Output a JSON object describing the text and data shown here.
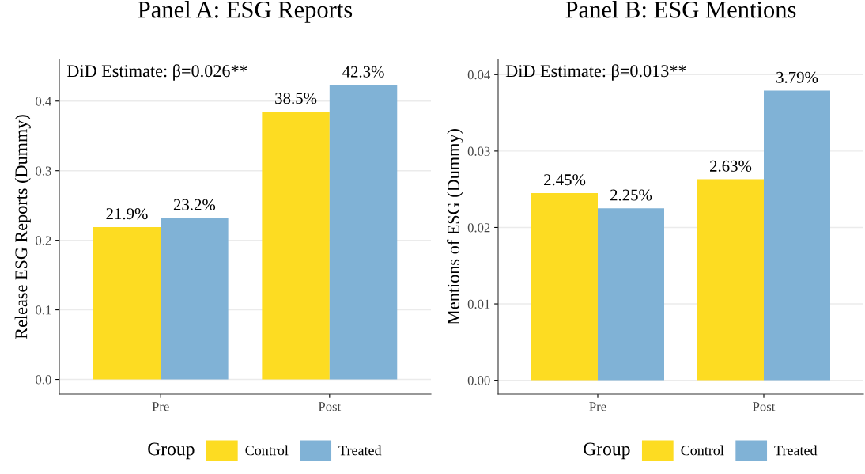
{
  "chart_data": [
    {
      "type": "bar",
      "title": "Panel A: ESG Reports",
      "ylabel": "Release ESG Reports (Dummy)",
      "legend_title": "Group",
      "annotations": [
        "DiD Estimate: β=0.026**"
      ],
      "categories": [
        "Pre",
        "Post"
      ],
      "series": [
        {
          "name": "Control",
          "color": "#fddc22",
          "values": [
            0.219,
            0.385
          ],
          "value_labels": [
            "21.9%",
            "38.5%"
          ]
        },
        {
          "name": "Treated",
          "color": "#80b2d6",
          "values": [
            0.232,
            0.423
          ],
          "value_labels": [
            "23.2%",
            "42.3%"
          ]
        }
      ],
      "ylim": [
        -0.021,
        0.46
      ],
      "yticks": [
        {
          "value": 0,
          "label": "0.0"
        },
        0.1,
        0.2,
        0.3,
        0.4
      ],
      "grid": "y",
      "legend": "bottom"
    },
    {
      "type": "bar",
      "title": "Panel B: ESG Mentions",
      "ylabel": "Mentions of ESG (Dummy)",
      "legend_title": "Group",
      "annotations": [
        "DiD Estimate: β=0.013**"
      ],
      "categories": [
        "Pre",
        "Post"
      ],
      "series": [
        {
          "name": "Control",
          "color": "#fddc22",
          "values": [
            0.0245,
            0.0263
          ],
          "value_labels": [
            "2.45%",
            "2.63%"
          ]
        },
        {
          "name": "Treated",
          "color": "#80b2d6",
          "values": [
            0.0225,
            0.0379
          ],
          "value_labels": [
            "2.25%",
            "3.79%"
          ]
        }
      ],
      "ylim": [
        -0.0018,
        0.042
      ],
      "yticks": [
        {
          "value": 0,
          "label": "0.00"
        },
        {
          "value": 0.01,
          "label": "0.01"
        },
        {
          "value": 0.02,
          "label": "0.02"
        },
        {
          "value": 0.03,
          "label": "0.03"
        },
        {
          "value": 0.04,
          "label": "0.04"
        }
      ],
      "grid": "y",
      "legend": "bottom"
    }
  ]
}
